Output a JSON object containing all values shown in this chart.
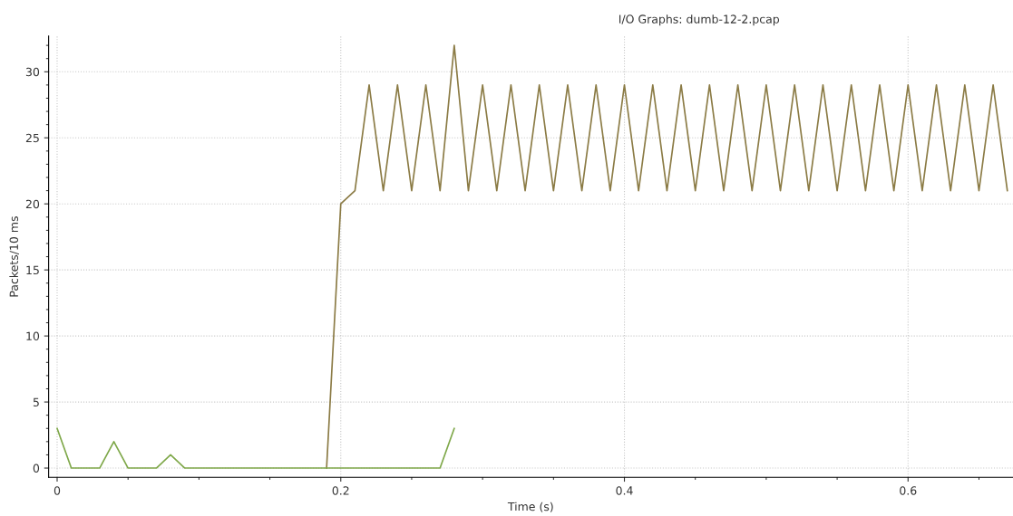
{
  "chart_data": {
    "type": "line",
    "title": "I/O Graphs: dumb-12-2.pcap",
    "xlabel": "Time (s)",
    "ylabel": "Packets/10 ms",
    "series": [
      {
        "color": "#8b7b45",
        "x": [
          0.19,
          0.2,
          0.21,
          0.22,
          0.23,
          0.24,
          0.25,
          0.26,
          0.27,
          0.28,
          0.29,
          0.3,
          0.31,
          0.32,
          0.33,
          0.34,
          0.35,
          0.36,
          0.37,
          0.38,
          0.39,
          0.4,
          0.41,
          0.42,
          0.43,
          0.44,
          0.45,
          0.46,
          0.47,
          0.48,
          0.49,
          0.5,
          0.51,
          0.52,
          0.53,
          0.54,
          0.55,
          0.56,
          0.57,
          0.58,
          0.59,
          0.6,
          0.61,
          0.62,
          0.63,
          0.64,
          0.65,
          0.66,
          0.67
        ],
        "values": [
          0,
          20,
          21,
          29,
          21,
          29,
          21,
          29,
          21,
          32,
          21,
          29,
          21,
          29,
          21,
          29,
          21,
          29,
          21,
          29,
          21,
          29,
          21,
          29,
          21,
          29,
          21,
          29,
          21,
          29,
          21,
          29,
          21,
          29,
          21,
          29,
          21,
          29,
          21,
          29,
          21,
          29,
          21,
          29,
          21,
          29,
          21,
          29,
          21
        ]
      },
      {
        "color": "#7fa84a",
        "x": [
          0,
          0.01,
          0.02,
          0.03,
          0.04,
          0.05,
          0.06,
          0.07,
          0.08,
          0.09,
          0.1,
          0.11,
          0.12,
          0.13,
          0.14,
          0.15,
          0.16,
          0.17,
          0.18,
          0.19,
          0.2,
          0.21,
          0.22,
          0.23,
          0.24,
          0.25,
          0.26,
          0.27,
          0.28
        ],
        "values": [
          3,
          0,
          0,
          0,
          2,
          0,
          0,
          0,
          1,
          0,
          0,
          0,
          0,
          0,
          0,
          0,
          0,
          0,
          0,
          0,
          0,
          0,
          0,
          0,
          0,
          0,
          0,
          0,
          3
        ]
      }
    ],
    "xlim": [
      -0.006,
      0.674
    ],
    "ylim": [
      -0.7,
      32.7
    ],
    "xticks": [
      0,
      0.2,
      0.4,
      0.6
    ],
    "yticks": [
      0,
      5,
      10,
      15,
      20,
      25,
      30
    ],
    "grid": true,
    "legend": false,
    "marker": "none",
    "line_style": "solid"
  }
}
